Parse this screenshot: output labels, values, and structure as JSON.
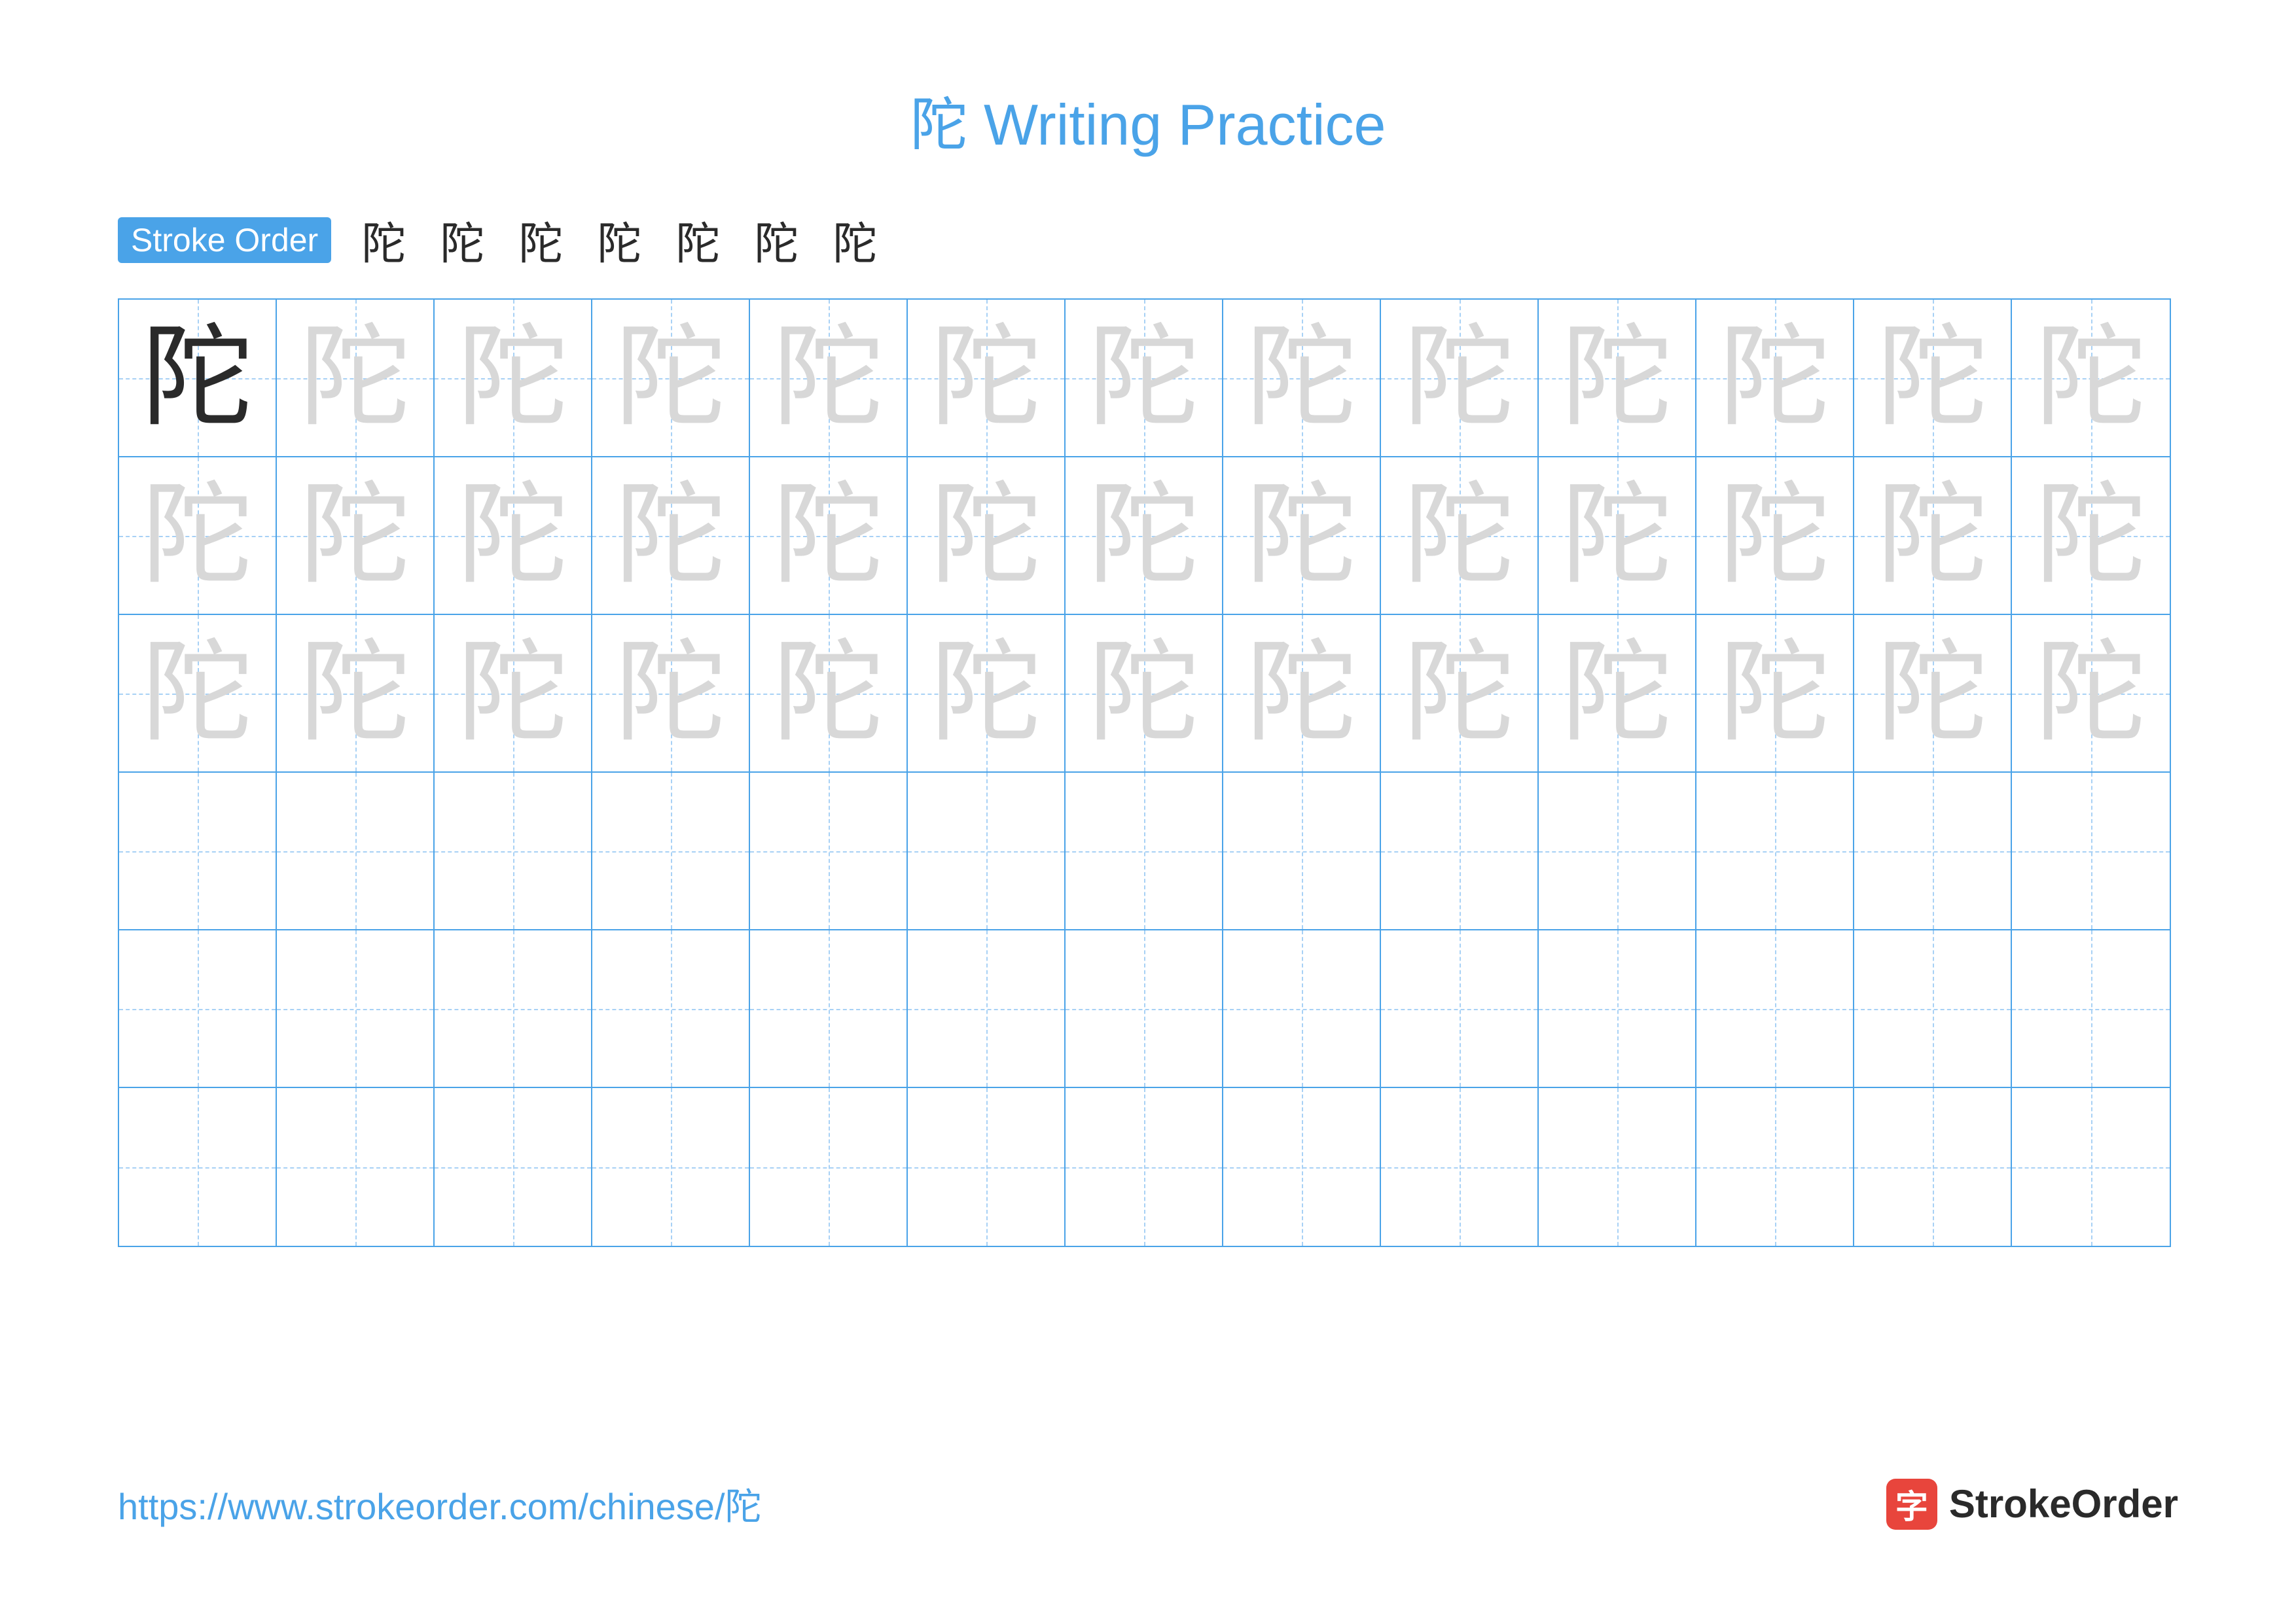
{
  "title": "陀 Writing Practice",
  "title_color": "#4aa3e8",
  "stroke_label": "Stroke Order",
  "stroke_label_bg": "#4aa3e8",
  "character": "陀",
  "stroke_steps": [
    "阝",
    "阝",
    "阝",
    "阝",
    "阝",
    "陀",
    "陀"
  ],
  "stroke_step_color_base": "#2a2a2a",
  "stroke_step_color_highlight": "#e8453c",
  "grid": {
    "rows": 6,
    "cols": 13,
    "border_color": "#4aa3e8",
    "guide_color": "#a8d1f5",
    "cell_size": 241,
    "trace_rows": 3,
    "trace_color": "#d8d8d8",
    "solid_color": "#2a2a2a"
  },
  "footer": {
    "url": "https://www.strokeorder.com/chinese/陀",
    "url_color": "#4aa3e8",
    "brand_text": "StrokeOrder",
    "brand_icon_char": "字",
    "brand_icon_bg": "#e8453c",
    "brand_text_color": "#2a2a2a"
  }
}
